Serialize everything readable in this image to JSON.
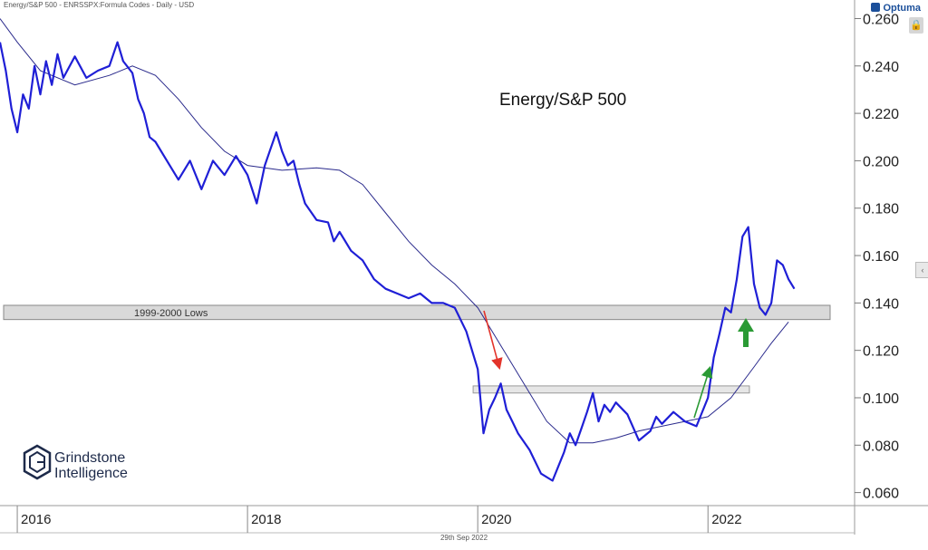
{
  "header": {
    "symbol_text": "Energy/S&P 500 - ENRSSPX:Formula Codes - Daily - USD"
  },
  "brand": {
    "name": "Optuma"
  },
  "footer": {
    "date": "29th Sep 2022"
  },
  "logo": {
    "line1": "Grindstone",
    "line2": "Intelligence"
  },
  "colors": {
    "price": "#1f1fd6",
    "ma": "#2a2a8c",
    "band": "#d9d9d9",
    "red_arrow": "#e3342b",
    "green_arrow": "#2a9a34"
  },
  "chart_data": {
    "type": "line",
    "title": "Energy/S&P 500",
    "xlabel": "",
    "ylabel": "",
    "x_range": [
      2015.85,
      2023.25
    ],
    "ylim": [
      0.0545,
      0.264
    ],
    "y_ticks": [
      0.06,
      0.08,
      0.1,
      0.12,
      0.14,
      0.16,
      0.18,
      0.2,
      0.22,
      0.24,
      0.26
    ],
    "y_tick_labels": [
      "0.060",
      "0.080",
      "0.100",
      "0.120",
      "0.140",
      "0.160",
      "0.180",
      "0.200",
      "0.220",
      "0.240",
      "0.260"
    ],
    "x_ticks": [
      2016,
      2018,
      2020,
      2022
    ],
    "x_tick_labels": [
      "2016",
      "2018",
      "2020",
      "2022"
    ],
    "series": [
      {
        "name": "Energy/S&P 500",
        "x": [
          2015.85,
          2015.9,
          2015.95,
          2016.0,
          2016.05,
          2016.1,
          2016.15,
          2016.2,
          2016.25,
          2016.3,
          2016.35,
          2016.4,
          2016.5,
          2016.6,
          2016.7,
          2016.8,
          2016.87,
          2016.92,
          2017.0,
          2017.05,
          2017.1,
          2017.15,
          2017.2,
          2017.3,
          2017.4,
          2017.5,
          2017.6,
          2017.7,
          2017.8,
          2017.9,
          2018.0,
          2018.08,
          2018.15,
          2018.2,
          2018.25,
          2018.3,
          2018.35,
          2018.4,
          2018.45,
          2018.5,
          2018.6,
          2018.7,
          2018.75,
          2018.8,
          2018.9,
          2019.0,
          2019.1,
          2019.2,
          2019.3,
          2019.4,
          2019.5,
          2019.6,
          2019.7,
          2019.8,
          2019.9,
          2020.0,
          2020.05,
          2020.1,
          2020.15,
          2020.2,
          2020.25,
          2020.3,
          2020.35,
          2020.45,
          2020.55,
          2020.65,
          2020.75,
          2020.8,
          2020.85,
          2020.9,
          2020.95,
          2021.0,
          2021.05,
          2021.1,
          2021.15,
          2021.2,
          2021.3,
          2021.4,
          2021.5,
          2021.55,
          2021.6,
          2021.7,
          2021.8,
          2021.9,
          2022.0,
          2022.05,
          2022.1,
          2022.15,
          2022.2,
          2022.25,
          2022.3,
          2022.35,
          2022.4,
          2022.45,
          2022.5,
          2022.55,
          2022.6,
          2022.65,
          2022.7,
          2022.75
        ],
        "values": [
          0.25,
          0.238,
          0.222,
          0.212,
          0.228,
          0.222,
          0.24,
          0.228,
          0.242,
          0.232,
          0.245,
          0.235,
          0.244,
          0.235,
          0.238,
          0.24,
          0.25,
          0.242,
          0.237,
          0.226,
          0.22,
          0.21,
          0.208,
          0.2,
          0.192,
          0.2,
          0.188,
          0.2,
          0.194,
          0.202,
          0.194,
          0.182,
          0.198,
          0.205,
          0.212,
          0.204,
          0.198,
          0.2,
          0.19,
          0.182,
          0.175,
          0.174,
          0.166,
          0.17,
          0.162,
          0.158,
          0.15,
          0.146,
          0.144,
          0.142,
          0.144,
          0.14,
          0.14,
          0.138,
          0.128,
          0.112,
          0.085,
          0.095,
          0.1,
          0.106,
          0.095,
          0.09,
          0.085,
          0.078,
          0.068,
          0.065,
          0.077,
          0.085,
          0.08,
          0.087,
          0.094,
          0.102,
          0.09,
          0.097,
          0.094,
          0.098,
          0.093,
          0.082,
          0.086,
          0.092,
          0.089,
          0.094,
          0.09,
          0.088,
          0.1,
          0.117,
          0.127,
          0.138,
          0.136,
          0.15,
          0.168,
          0.172,
          0.148,
          0.138,
          0.135,
          0.14,
          0.158,
          0.156,
          0.15,
          0.146
        ]
      },
      {
        "name": "Moving Average",
        "x": [
          2015.85,
          2016.0,
          2016.2,
          2016.5,
          2016.8,
          2017.0,
          2017.2,
          2017.4,
          2017.6,
          2017.8,
          2018.0,
          2018.3,
          2018.6,
          2018.8,
          2019.0,
          2019.2,
          2019.4,
          2019.6,
          2019.8,
          2020.0,
          2020.2,
          2020.4,
          2020.6,
          2020.8,
          2021.0,
          2021.2,
          2021.4,
          2021.6,
          2021.8,
          2022.0,
          2022.2,
          2022.4,
          2022.55,
          2022.7
        ],
        "values": [
          0.26,
          0.25,
          0.238,
          0.232,
          0.236,
          0.24,
          0.236,
          0.226,
          0.214,
          0.204,
          0.198,
          0.196,
          0.197,
          0.196,
          0.19,
          0.178,
          0.166,
          0.156,
          0.148,
          0.138,
          0.122,
          0.106,
          0.09,
          0.081,
          0.081,
          0.083,
          0.086,
          0.088,
          0.09,
          0.092,
          0.1,
          0.113,
          0.123,
          0.132
        ]
      }
    ],
    "bands": [
      {
        "label": "1999-2000 Lows",
        "y_min": 0.133,
        "y_max": 0.139
      },
      {
        "label": "",
        "y_min": 0.102,
        "y_max": 0.105
      }
    ],
    "annotations": [
      {
        "text": "Energy/S&P 500",
        "type": "title"
      }
    ]
  }
}
